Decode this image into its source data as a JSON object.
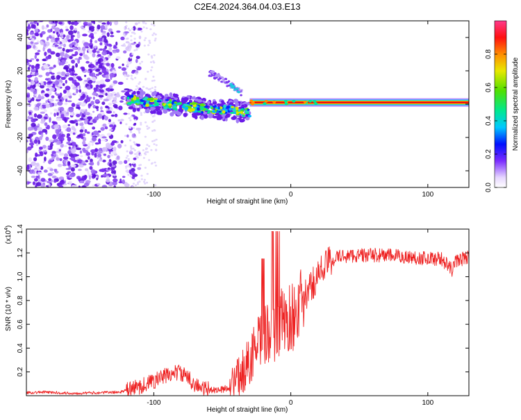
{
  "title": "C2E4.2024.364.04.03.E13",
  "colors": {
    "signal": "#ee2222",
    "purple": "#6a16e8",
    "axis": "#000000"
  },
  "chart_data": [
    {
      "type": "heatmap",
      "title": "C2E4.2024.364.04.03.E13",
      "xlabel": "Height of straight line (km)",
      "ylabel": "Frequency (Hz)",
      "xlim": [
        -193,
        130
      ],
      "ylim": [
        -50,
        50
      ],
      "xticks": [
        -100,
        0,
        100
      ],
      "xtick_labels": [
        "-100",
        "0",
        "100"
      ],
      "yticks": [
        -40,
        -20,
        0,
        20,
        40
      ],
      "ytick_labels": [
        "-40",
        "-20",
        "0",
        "20",
        "40"
      ],
      "features": [
        {
          "name": "noise-region",
          "x_range": [
            -193,
            -120
          ],
          "y_range": [
            -50,
            50
          ]
        },
        {
          "name": "descending-trace",
          "x": [
            -120,
            -100,
            -80,
            -60,
            -40,
            -30
          ],
          "y": [
            3,
            1,
            -1,
            -3,
            -4,
            -5
          ]
        },
        {
          "name": "upper-branch",
          "x": [
            -60,
            -50,
            -40,
            -35
          ],
          "y": [
            19,
            15,
            9,
            6
          ]
        },
        {
          "name": "steady-line",
          "x": [
            -30,
            130
          ],
          "y": [
            1,
            1
          ]
        }
      ],
      "colorbar": {
        "label": "Normalized spectral amplitude",
        "range": [
          0,
          1
        ],
        "ticks": [
          0.0,
          0.2,
          0.4,
          0.6,
          0.8
        ],
        "tick_labels": [
          "0.0",
          "0.2",
          "0.4",
          "0.6",
          "0.8"
        ]
      }
    },
    {
      "type": "line",
      "xlabel": "Height of straight line (km)",
      "ylabel": "SNR (10 * v/v)",
      "scale_label": "(x10",
      "scale_exp": "4",
      "scale_close": ")",
      "xlim": [
        -193,
        130
      ],
      "ylim": [
        0,
        1.4
      ],
      "xticks": [
        -100,
        0,
        100
      ],
      "xtick_labels": [
        "-100",
        "0",
        "100"
      ],
      "yticks": [
        0.2,
        0.4,
        0.6,
        0.8,
        1.0,
        1.2,
        1.4
      ],
      "ytick_labels": [
        "0.2",
        "0.4",
        "0.6",
        "0.8",
        "1.0",
        "1.2",
        "1.4"
      ],
      "series": [
        {
          "name": "SNR",
          "x": [
            -193,
            -180,
            -160,
            -140,
            -125,
            -115,
            -105,
            -95,
            -88,
            -82,
            -78,
            -72,
            -66,
            -60,
            -50,
            -44,
            -40,
            -36,
            -30,
            -26,
            -22,
            -18,
            -14,
            -10,
            -5,
            0,
            5,
            10,
            15,
            20,
            25,
            30,
            35,
            50,
            70,
            90,
            110,
            118,
            120,
            125,
            130
          ],
          "values": [
            0.025,
            0.03,
            0.02,
            0.025,
            0.03,
            0.06,
            0.1,
            0.15,
            0.18,
            0.2,
            0.17,
            0.12,
            0.06,
            0.05,
            0.05,
            0.08,
            0.12,
            0.18,
            0.3,
            0.4,
            0.45,
            0.5,
            0.55,
            0.6,
            0.62,
            0.65,
            0.72,
            0.82,
            0.92,
            1.02,
            1.1,
            1.14,
            1.17,
            1.18,
            1.18,
            1.16,
            1.15,
            1.05,
            1.13,
            1.15,
            1.17
          ]
        }
      ]
    }
  ]
}
